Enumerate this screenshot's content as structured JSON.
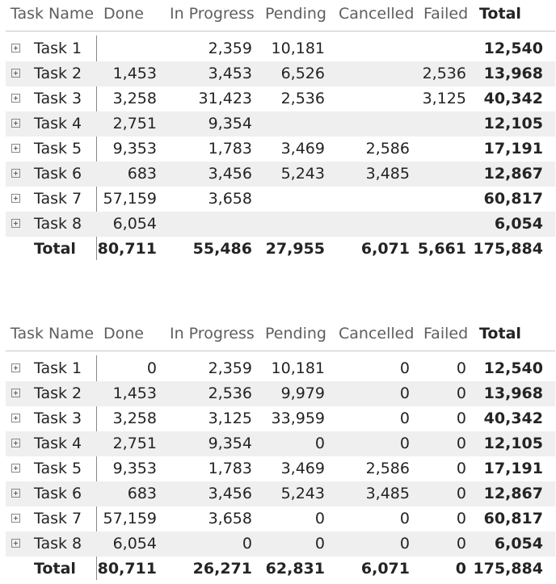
{
  "matrices": [
    {
      "headers": {
        "task_name": "Task Name",
        "done": "Done",
        "in_progress": "In Progress",
        "pending": "Pending",
        "cancelled": "Cancelled",
        "failed": "Failed",
        "total": "Total"
      },
      "rows": [
        {
          "name": "Task 1",
          "done": "",
          "in_progress": "2,359",
          "pending": "10,181",
          "cancelled": "",
          "failed": "",
          "total": "12,540"
        },
        {
          "name": "Task 2",
          "done": "1,453",
          "in_progress": "3,453",
          "pending": "6,526",
          "cancelled": "",
          "failed": "2,536",
          "total": "13,968"
        },
        {
          "name": "Task 3",
          "done": "3,258",
          "in_progress": "31,423",
          "pending": "2,536",
          "cancelled": "",
          "failed": "3,125",
          "total": "40,342"
        },
        {
          "name": "Task 4",
          "done": "2,751",
          "in_progress": "9,354",
          "pending": "",
          "cancelled": "",
          "failed": "",
          "total": "12,105"
        },
        {
          "name": "Task 5",
          "done": "9,353",
          "in_progress": "1,783",
          "pending": "3,469",
          "cancelled": "2,586",
          "failed": "",
          "total": "17,191"
        },
        {
          "name": "Task 6",
          "done": "683",
          "in_progress": "3,456",
          "pending": "5,243",
          "cancelled": "3,485",
          "failed": "",
          "total": "12,867"
        },
        {
          "name": "Task 7",
          "done": "57,159",
          "in_progress": "3,658",
          "pending": "",
          "cancelled": "",
          "failed": "",
          "total": "60,817"
        },
        {
          "name": "Task 8",
          "done": "6,054",
          "in_progress": "",
          "pending": "",
          "cancelled": "",
          "failed": "",
          "total": "6,054"
        }
      ],
      "totals": {
        "label": "Total",
        "done": "80,711",
        "in_progress": "55,486",
        "pending": "27,955",
        "cancelled": "6,071",
        "failed": "5,661",
        "total": "175,884"
      }
    },
    {
      "headers": {
        "task_name": "Task Name",
        "done": "Done",
        "in_progress": "In Progress",
        "pending": "Pending",
        "cancelled": "Cancelled",
        "failed": "Failed",
        "total": "Total"
      },
      "rows": [
        {
          "name": "Task 1",
          "done": "0",
          "in_progress": "2,359",
          "pending": "10,181",
          "cancelled": "0",
          "failed": "0",
          "total": "12,540"
        },
        {
          "name": "Task 2",
          "done": "1,453",
          "in_progress": "2,536",
          "pending": "9,979",
          "cancelled": "0",
          "failed": "0",
          "total": "13,968"
        },
        {
          "name": "Task 3",
          "done": "3,258",
          "in_progress": "3,125",
          "pending": "33,959",
          "cancelled": "0",
          "failed": "0",
          "total": "40,342"
        },
        {
          "name": "Task 4",
          "done": "2,751",
          "in_progress": "9,354",
          "pending": "0",
          "cancelled": "0",
          "failed": "0",
          "total": "12,105"
        },
        {
          "name": "Task 5",
          "done": "9,353",
          "in_progress": "1,783",
          "pending": "3,469",
          "cancelled": "2,586",
          "failed": "0",
          "total": "17,191"
        },
        {
          "name": "Task 6",
          "done": "683",
          "in_progress": "3,456",
          "pending": "5,243",
          "cancelled": "3,485",
          "failed": "0",
          "total": "12,867"
        },
        {
          "name": "Task 7",
          "done": "57,159",
          "in_progress": "3,658",
          "pending": "0",
          "cancelled": "0",
          "failed": "0",
          "total": "60,817"
        },
        {
          "name": "Task 8",
          "done": "6,054",
          "in_progress": "0",
          "pending": "0",
          "cancelled": "0",
          "failed": "0",
          "total": "6,054"
        }
      ],
      "totals": {
        "label": "Total",
        "done": "80,711",
        "in_progress": "26,271",
        "pending": "62,831",
        "cancelled": "6,071",
        "failed": "0",
        "total": "175,884"
      }
    }
  ],
  "colors": {
    "row_shade": "#efefef",
    "header_text": "#605e5c",
    "body_text": "#252423",
    "divider": "#c8c6c4"
  },
  "icons": {
    "row_expand": "expand-plus-icon"
  }
}
